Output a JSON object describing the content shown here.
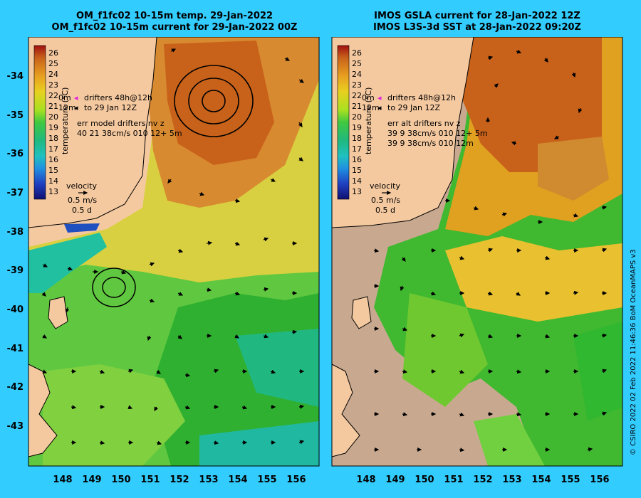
{
  "panels": [
    {
      "id": "left",
      "title_line1": "OM_f1fc02 10-15m temp. 29-Jan-2022",
      "title_line2": "OM_f1fc02 10-15m current for 29-Jan-2022 00Z",
      "colorbar_label": "temperature (°C)",
      "colorbar_ticks": [
        "26",
        "25",
        "24",
        "23",
        "22",
        "21",
        "20",
        "19",
        "18",
        "17",
        "16",
        "15",
        "14",
        "13"
      ],
      "legend_drifters": "drifters 48h@12h",
      "legend_depth_0": "0m",
      "legend_depth_12": "12m",
      "legend_to": "to 29 Jan 12Z",
      "legend_err_title": "err model drifters nv z",
      "legend_err_line1": "40 21 38cm/s 010 12+ 5m",
      "legend_err_line2": "",
      "velocity_label": "velocity",
      "velocity_speed": "0.5 m/s",
      "velocity_time": "0.5 d"
    },
    {
      "id": "right",
      "title_line1": "IMOS GSLA current for 28-Jan-2022 12Z",
      "title_line2": "IMOS L3S-3d SST at 28-Jan-2022 09:20Z",
      "colorbar_label": "temperature (°C)",
      "colorbar_ticks": [
        "26",
        "25",
        "24",
        "23",
        "22",
        "21",
        "20",
        "19",
        "18",
        "17",
        "16",
        "15",
        "14",
        "13"
      ],
      "legend_drifters": "drifters 48h@12h",
      "legend_depth_0": "0m",
      "legend_depth_12": "12m",
      "legend_to": "to 29 Jan 12Z",
      "legend_err_title": "err alt drifters nv z",
      "legend_err_line1": "39 9 38cm/s 010 12+ 5m",
      "legend_err_line2": "39 9 38cm/s 010 12m",
      "velocity_label": "velocity",
      "velocity_speed": "0.5 m/s",
      "velocity_time": "0.5 d"
    }
  ],
  "y_axis_ticks": [
    "-34",
    "-35",
    "-36",
    "-37",
    "-38",
    "-39",
    "-40",
    "-41",
    "-42",
    "-43"
  ],
  "x_axis_ticks": [
    "148",
    "149",
    "150",
    "151",
    "152",
    "153",
    "154",
    "155",
    "156"
  ],
  "credit": "© CSIRO 2022   02 Feb 2022 11:46:36 BoM OceanMAPS v3",
  "colors": {
    "background": "#33ccff",
    "land": "#f5c9a0",
    "cloud_gap": "#c8a990",
    "warm": "#c8621a",
    "mid": "#e0c030",
    "cool": "#30c030"
  }
}
